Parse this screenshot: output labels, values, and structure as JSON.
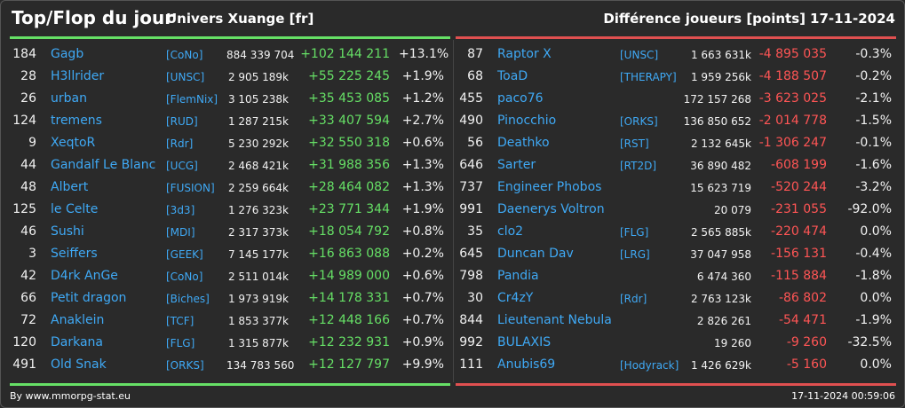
{
  "header": {
    "title": "Top/Flop du jour",
    "universe": "Univers Xuange [fr]",
    "diff_label": "Différence joueurs [points]",
    "date": "17-11-2024"
  },
  "colors": {
    "top_bar": "#66e066",
    "flop_bar": "#e05050",
    "name_link": "#3fa9f5",
    "positive": "#66e066",
    "negative": "#ff5555"
  },
  "top": [
    {
      "rank": "184",
      "name": "Gagb",
      "guild": "[CoNo]",
      "points": "884 339 704",
      "diff": "+102 144 211",
      "pct": "+13.1%"
    },
    {
      "rank": "28",
      "name": "H3llrider",
      "guild": "[UNSC]",
      "points": "2 905 189k",
      "diff": "+55 225 245",
      "pct": "+1.9%"
    },
    {
      "rank": "26",
      "name": "urban",
      "guild": "[FlemNix]",
      "points": "3 105 238k",
      "diff": "+35 453 085",
      "pct": "+1.2%"
    },
    {
      "rank": "124",
      "name": "tremens",
      "guild": "[RUD]",
      "points": "1 287 215k",
      "diff": "+33 407 594",
      "pct": "+2.7%"
    },
    {
      "rank": "9",
      "name": "XeqtoR",
      "guild": "[Rdr]",
      "points": "5 230 292k",
      "diff": "+32 550 318",
      "pct": "+0.6%"
    },
    {
      "rank": "44",
      "name": "Gandalf Le Blanc",
      "guild": "[UCG]",
      "points": "2 468 421k",
      "diff": "+31 988 356",
      "pct": "+1.3%"
    },
    {
      "rank": "48",
      "name": "Albert",
      "guild": "[FUSION]",
      "points": "2 259 664k",
      "diff": "+28 464 082",
      "pct": "+1.3%"
    },
    {
      "rank": "125",
      "name": "le Celte",
      "guild": "[3d3]",
      "points": "1 276 323k",
      "diff": "+23 771 344",
      "pct": "+1.9%"
    },
    {
      "rank": "46",
      "name": "Sushi",
      "guild": "[MDI]",
      "points": "2 317 373k",
      "diff": "+18 054 792",
      "pct": "+0.8%"
    },
    {
      "rank": "3",
      "name": "Seiffers",
      "guild": "[GEEK]",
      "points": "7 145 177k",
      "diff": "+16 863 088",
      "pct": "+0.2%"
    },
    {
      "rank": "42",
      "name": "D4rk AnGe",
      "guild": "[CoNo]",
      "points": "2 511 014k",
      "diff": "+14 989 000",
      "pct": "+0.6%"
    },
    {
      "rank": "66",
      "name": "Petit dragon",
      "guild": "[Biches]",
      "points": "1 973 919k",
      "diff": "+14 178 331",
      "pct": "+0.7%"
    },
    {
      "rank": "72",
      "name": "Anaklein",
      "guild": "[TCF]",
      "points": "1 853 377k",
      "diff": "+12 448 166",
      "pct": "+0.7%"
    },
    {
      "rank": "120",
      "name": "Darkana",
      "guild": "[FLG]",
      "points": "1 315 877k",
      "diff": "+12 232 931",
      "pct": "+0.9%"
    },
    {
      "rank": "491",
      "name": "Old Snak",
      "guild": "[ORKS]",
      "points": "134 783 560",
      "diff": "+12 127 797",
      "pct": "+9.9%"
    }
  ],
  "flop": [
    {
      "rank": "87",
      "name": "Raptor X",
      "guild": "[UNSC]",
      "points": "1 663 631k",
      "diff": "-4 895 035",
      "pct": "-0.3%"
    },
    {
      "rank": "68",
      "name": "ToaD",
      "guild": "[THERAPY]",
      "points": "1 959 256k",
      "diff": "-4 188 507",
      "pct": "-0.2%"
    },
    {
      "rank": "455",
      "name": "paco76",
      "guild": "",
      "points": "172 157 268",
      "diff": "-3 623 025",
      "pct": "-2.1%"
    },
    {
      "rank": "490",
      "name": "Pinocchio",
      "guild": "[ORKS]",
      "points": "136 850 652",
      "diff": "-2 014 778",
      "pct": "-1.5%"
    },
    {
      "rank": "56",
      "name": "Deathko",
      "guild": "[RST]",
      "points": "2 132 645k",
      "diff": "-1 306 247",
      "pct": "-0.1%"
    },
    {
      "rank": "646",
      "name": "Sarter",
      "guild": "[RT2D]",
      "points": "36 890 482",
      "diff": "-608 199",
      "pct": "-1.6%"
    },
    {
      "rank": "737",
      "name": "Engineer Phobos",
      "guild": "",
      "points": "15 623 719",
      "diff": "-520 244",
      "pct": "-3.2%"
    },
    {
      "rank": "991",
      "name": "Daenerys Voltron",
      "guild": "",
      "points": "20 079",
      "diff": "-231 055",
      "pct": "-92.0%"
    },
    {
      "rank": "35",
      "name": "clo2",
      "guild": "[FLG]",
      "points": "2 565 885k",
      "diff": "-220 474",
      "pct": "0.0%"
    },
    {
      "rank": "645",
      "name": "Duncan Dav",
      "guild": "[LRG]",
      "points": "37 047 958",
      "diff": "-156 131",
      "pct": "-0.4%"
    },
    {
      "rank": "798",
      "name": "Pandia",
      "guild": "",
      "points": "6 474 360",
      "diff": "-115 884",
      "pct": "-1.8%"
    },
    {
      "rank": "30",
      "name": "Cr4zY",
      "guild": "[Rdr]",
      "points": "2 763 123k",
      "diff": "-86 802",
      "pct": "0.0%"
    },
    {
      "rank": "844",
      "name": "Lieutenant Nebula",
      "guild": "",
      "points": "2 826 261",
      "diff": "-54 471",
      "pct": "-1.9%"
    },
    {
      "rank": "992",
      "name": "BULAXIS",
      "guild": "",
      "points": "19 260",
      "diff": "-9 260",
      "pct": "-32.5%"
    },
    {
      "rank": "111",
      "name": "Anubis69",
      "guild": "[Hodyrack]",
      "points": "1 426 629k",
      "diff": "-5 160",
      "pct": "0.0%"
    }
  ],
  "footer": {
    "source": "By www.mmorpg-stat.eu",
    "timestamp": "17-11-2024 00:59:06"
  }
}
